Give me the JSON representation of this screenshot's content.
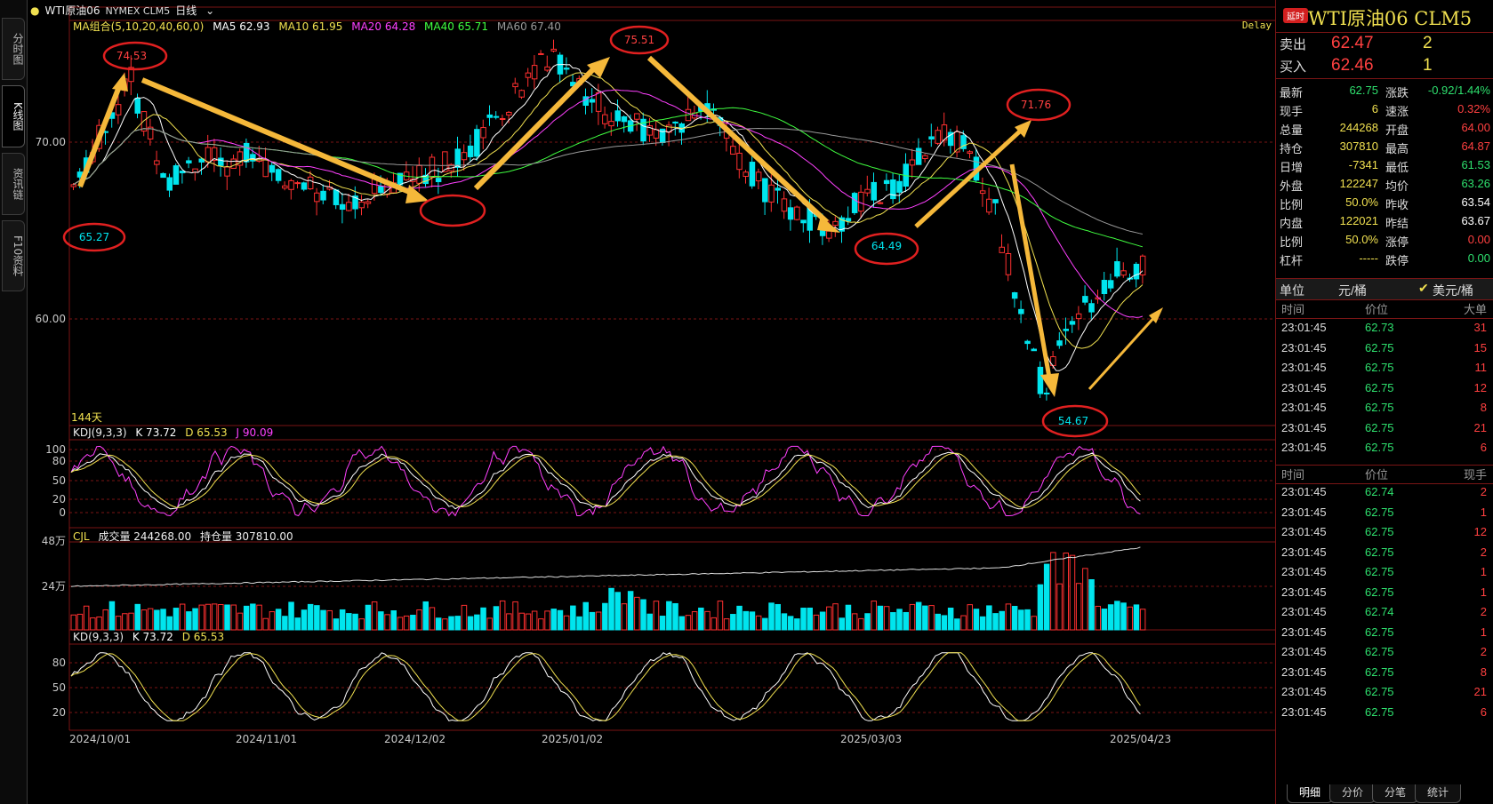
{
  "left_tabs": [
    "分时图",
    "K线图",
    "资讯链",
    "F10资料"
  ],
  "header": {
    "symbol_label": "WTI原油06",
    "exchange": "NYMEX CLM5",
    "period": "日线",
    "delay": "Delay"
  },
  "ma_legend": [
    {
      "label": "MA组合(5,10,20,40,60,0)",
      "color": "#f0e050"
    },
    {
      "label": "MA5 62.93",
      "color": "#ffffff"
    },
    {
      "label": "MA10 61.95",
      "color": "#f0e050"
    },
    {
      "label": "MA20 64.28",
      "color": "#ff40ff"
    },
    {
      "label": "MA40 65.71",
      "color": "#40ff40"
    },
    {
      "label": "MA60 67.40",
      "color": "#999999"
    }
  ],
  "price_axis": [
    "70.00",
    "60.00"
  ],
  "days_label": "144天",
  "annotations": [
    "74.53",
    "65.27",
    "75.51",
    "64.49",
    "71.76",
    "54.67"
  ],
  "kdj_legend": {
    "title": "KDJ(9,3,3)",
    "k": "K 73.72",
    "d": "D 65.53",
    "j": "J 90.09"
  },
  "kdj_axis": [
    "100",
    "80",
    "50",
    "20",
    "0"
  ],
  "cjl_legend": {
    "title": "CJL",
    "vol": "成交量 244268.00",
    "oi": "持仓量 307810.00"
  },
  "cjl_axis": [
    "48万",
    "24万"
  ],
  "kd_legend": {
    "title": "KD(9,3,3)",
    "k": "K 73.72",
    "d": "D 65.53"
  },
  "kd_axis": [
    "80",
    "50",
    "20"
  ],
  "date_axis": [
    "2024/10/01",
    "2024/11/01",
    "2024/12/02",
    "2025/01/02",
    "2025/03/03",
    "2025/04/23"
  ],
  "quote": {
    "badge": "延时",
    "title": "WTI原油06  CLM5",
    "sell_label": "卖出",
    "sell_price": "62.47",
    "sell_vol": "2",
    "buy_label": "买入",
    "buy_price": "62.46",
    "buy_vol": "1",
    "rows": [
      {
        "k1": "最新",
        "v1": "62.75",
        "c1": "#2ee06e",
        "k2": "涨跌",
        "v2": "-0.92/1.44%",
        "c2": "#2ee06e"
      },
      {
        "k1": "现手",
        "v1": "6",
        "c1": "#f0e050",
        "k2": "速涨",
        "v2": "0.32%",
        "c2": "#ff4040"
      },
      {
        "k1": "总量",
        "v1": "244268",
        "c1": "#f0e050",
        "k2": "开盘",
        "v2": "64.00",
        "c2": "#ff4040"
      },
      {
        "k1": "持仓",
        "v1": "307810",
        "c1": "#f0e050",
        "k2": "最高",
        "v2": "64.87",
        "c2": "#ff4040"
      },
      {
        "k1": "日增",
        "v1": "-7341",
        "c1": "#f0e050",
        "k2": "最低",
        "v2": "61.53",
        "c2": "#2ee06e"
      },
      {
        "k1": "外盘",
        "v1": "122247",
        "c1": "#f0e050",
        "k2": "均价",
        "v2": "63.26",
        "c2": "#2ee06e"
      },
      {
        "k1": "比例",
        "v1": "50.0%",
        "c1": "#f0e050",
        "k2": "昨收",
        "v2": "63.54",
        "c2": "#ffffff"
      },
      {
        "k1": "内盘",
        "v1": "122021",
        "c1": "#f0e050",
        "k2": "昨结",
        "v2": "63.67",
        "c2": "#ffffff"
      },
      {
        "k1": "比例",
        "v1": "50.0%",
        "c1": "#f0e050",
        "k2": "涨停",
        "v2": "0.00",
        "c2": "#ff4040"
      },
      {
        "k1": "杠杆",
        "v1": "-----",
        "c1": "#f0e050",
        "k2": "跌停",
        "v2": "0.00",
        "c2": "#2ee06e"
      }
    ],
    "unit_label": "单位",
    "unit_opt1": "元/桶",
    "unit_opt2": "美元/桶"
  },
  "big_orders": {
    "headers": [
      "时间",
      "价位",
      "大单"
    ],
    "rows": [
      {
        "t": "23:01:45",
        "p": "62.73",
        "n": "31"
      },
      {
        "t": "23:01:45",
        "p": "62.75",
        "n": "15"
      },
      {
        "t": "23:01:45",
        "p": "62.75",
        "n": "11"
      },
      {
        "t": "23:01:45",
        "p": "62.75",
        "n": "12"
      },
      {
        "t": "23:01:45",
        "p": "62.75",
        "n": "8"
      },
      {
        "t": "23:01:45",
        "p": "62.75",
        "n": "21"
      },
      {
        "t": "23:01:45",
        "p": "62.75",
        "n": "6"
      }
    ]
  },
  "ticks": {
    "headers": [
      "时间",
      "价位",
      "现手"
    ],
    "rows": [
      {
        "t": "23:01:45",
        "p": "62.74",
        "n": "2"
      },
      {
        "t": "23:01:45",
        "p": "62.75",
        "n": "1"
      },
      {
        "t": "23:01:45",
        "p": "62.75",
        "n": "12"
      },
      {
        "t": "23:01:45",
        "p": "62.75",
        "n": "2"
      },
      {
        "t": "23:01:45",
        "p": "62.75",
        "n": "1"
      },
      {
        "t": "23:01:45",
        "p": "62.75",
        "n": "1"
      },
      {
        "t": "23:01:45",
        "p": "62.74",
        "n": "2"
      },
      {
        "t": "23:01:45",
        "p": "62.75",
        "n": "1"
      },
      {
        "t": "23:01:45",
        "p": "62.75",
        "n": "2"
      },
      {
        "t": "23:01:45",
        "p": "62.75",
        "n": "8"
      },
      {
        "t": "23:01:45",
        "p": "62.75",
        "n": "21"
      },
      {
        "t": "23:01:45",
        "p": "62.75",
        "n": "6"
      }
    ]
  },
  "bottom_tabs": [
    "明细",
    "分价",
    "分笔",
    "统计"
  ],
  "colors": {
    "up": "#ff3030",
    "down": "#00e5ee",
    "grid": "#7a1515",
    "arrow": "#f5b83a",
    "circle": "#e02020"
  }
}
